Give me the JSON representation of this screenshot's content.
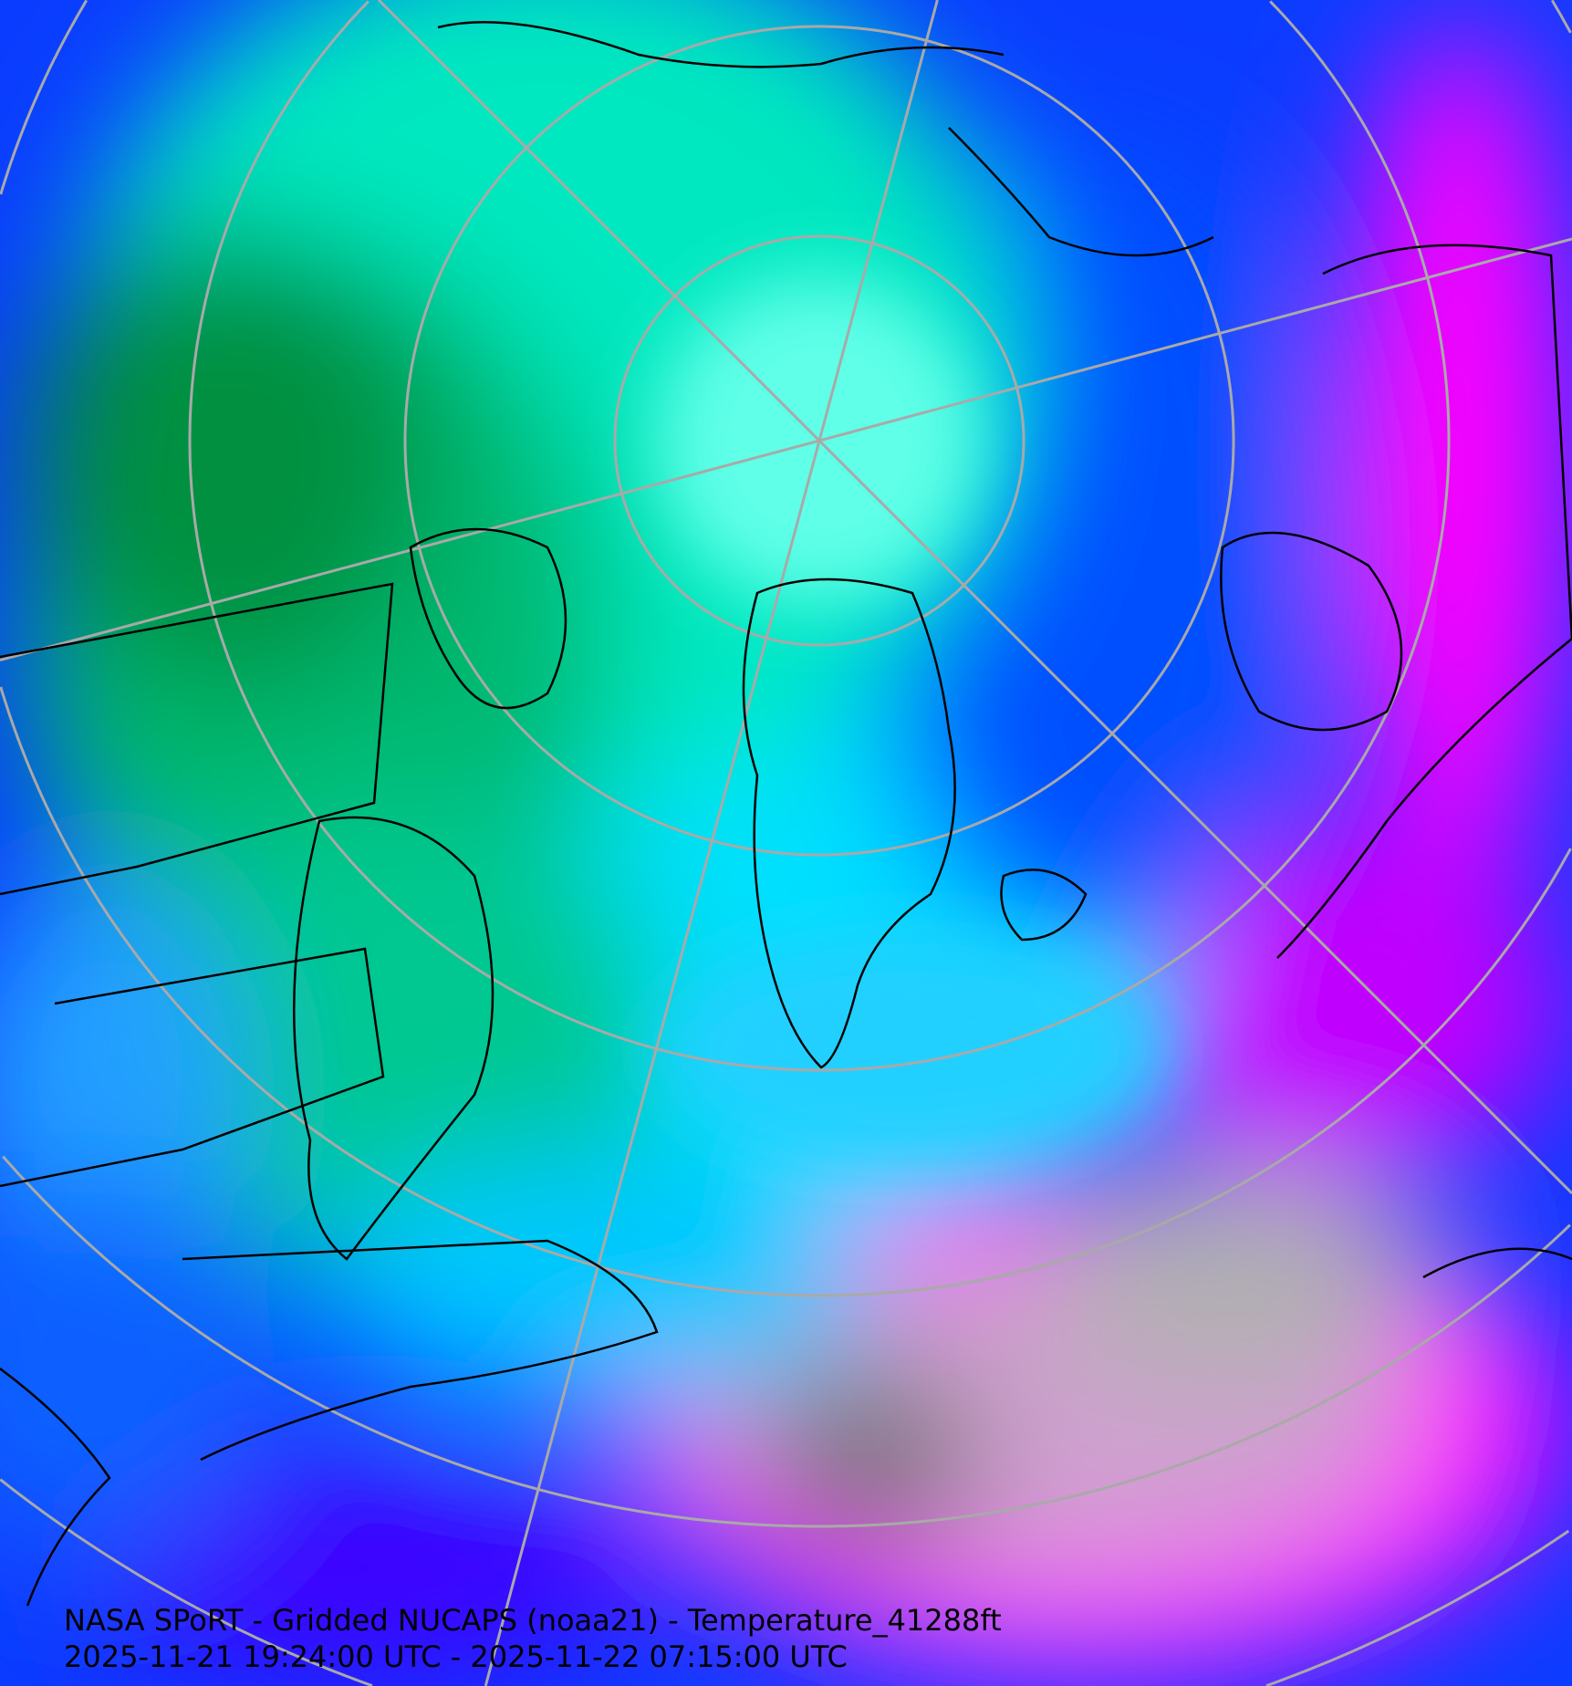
{
  "map": {
    "title": "NASA SPoRT - Gridded NUCAPS (noaa21) - Temperature_41288ft",
    "time_range": "2025-11-21 19:24:00 UTC - 2025-11-22 07:15:00 UTC",
    "projection": "north-polar-stereographic",
    "grid_color": "#a9a9a9",
    "coastline_color": "#000000",
    "palette": [
      "#008000",
      "#00c896",
      "#00ffff",
      "#0080ff",
      "#0000ff",
      "#8000ff",
      "#ff00ff",
      "#c0c0c0",
      "#505050"
    ]
  }
}
